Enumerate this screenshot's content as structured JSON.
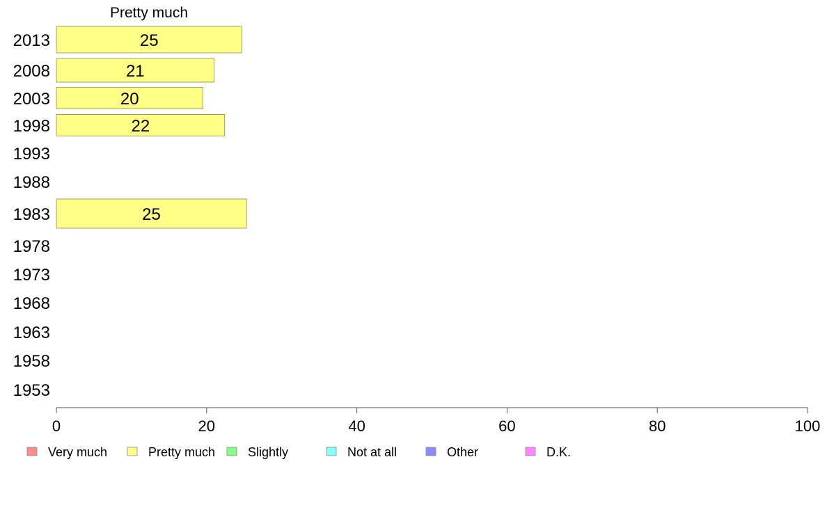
{
  "chart_data": {
    "type": "bar",
    "orientation": "horizontal",
    "title": "Pretty much",
    "categories": [
      "2013",
      "2008",
      "2003",
      "1998",
      "1993",
      "1988",
      "1983",
      "1978",
      "1973",
      "1968",
      "1963",
      "1958",
      "1953"
    ],
    "series": [
      {
        "name": "Pretty much",
        "color": "#ffff88",
        "values": [
          24.7,
          21.0,
          19.5,
          22.4,
          null,
          null,
          25.3,
          null,
          null,
          null,
          null,
          null,
          null
        ],
        "labels": [
          "25",
          "21",
          "20",
          "22",
          null,
          null,
          "25",
          null,
          null,
          null,
          null,
          null,
          null
        ]
      }
    ],
    "xlim": [
      0,
      100
    ],
    "xticks": [
      0,
      20,
      40,
      60,
      80,
      100
    ],
    "grid": false,
    "legend_position": "bottom",
    "legend": [
      {
        "label": "Very much",
        "color": "#ff8c8c"
      },
      {
        "label": "Pretty much",
        "color": "#ffff88"
      },
      {
        "label": "Slightly",
        "color": "#88ff88"
      },
      {
        "label": "Not at all",
        "color": "#88ffff"
      },
      {
        "label": "Other",
        "color": "#8c8cff"
      },
      {
        "label": "D.K.",
        "color": "#ff88ff"
      }
    ]
  }
}
